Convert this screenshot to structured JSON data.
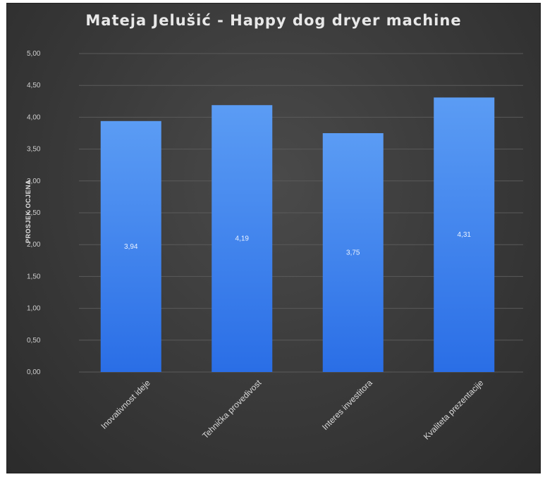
{
  "chart_data": {
    "type": "bar",
    "title": "Mateja Jelušić - Happy dog dryer machine",
    "ylabel": "PROSJEK OCJENA",
    "xlabel": "",
    "categories": [
      "Inovativnost ideje",
      "Tehnička provedivost",
      "Interes investitora",
      "Kvaliteta prezentacije"
    ],
    "values": [
      3.94,
      4.19,
      3.75,
      4.31
    ],
    "value_labels": [
      "3,94",
      "4,19",
      "3,75",
      "4,31"
    ],
    "ylim": [
      0,
      5
    ],
    "yticks": [
      "0,00",
      "0,50",
      "1,00",
      "1,50",
      "2,00",
      "2,50",
      "3,00",
      "3,50",
      "4,00",
      "4,50",
      "5,00"
    ],
    "grid": true,
    "legend": "none",
    "colors": {
      "bar_top": "#5b9cf4",
      "bar_bottom": "#2a6ee6",
      "background": "#3c3c3c",
      "grid": "#5a5a5a"
    }
  }
}
